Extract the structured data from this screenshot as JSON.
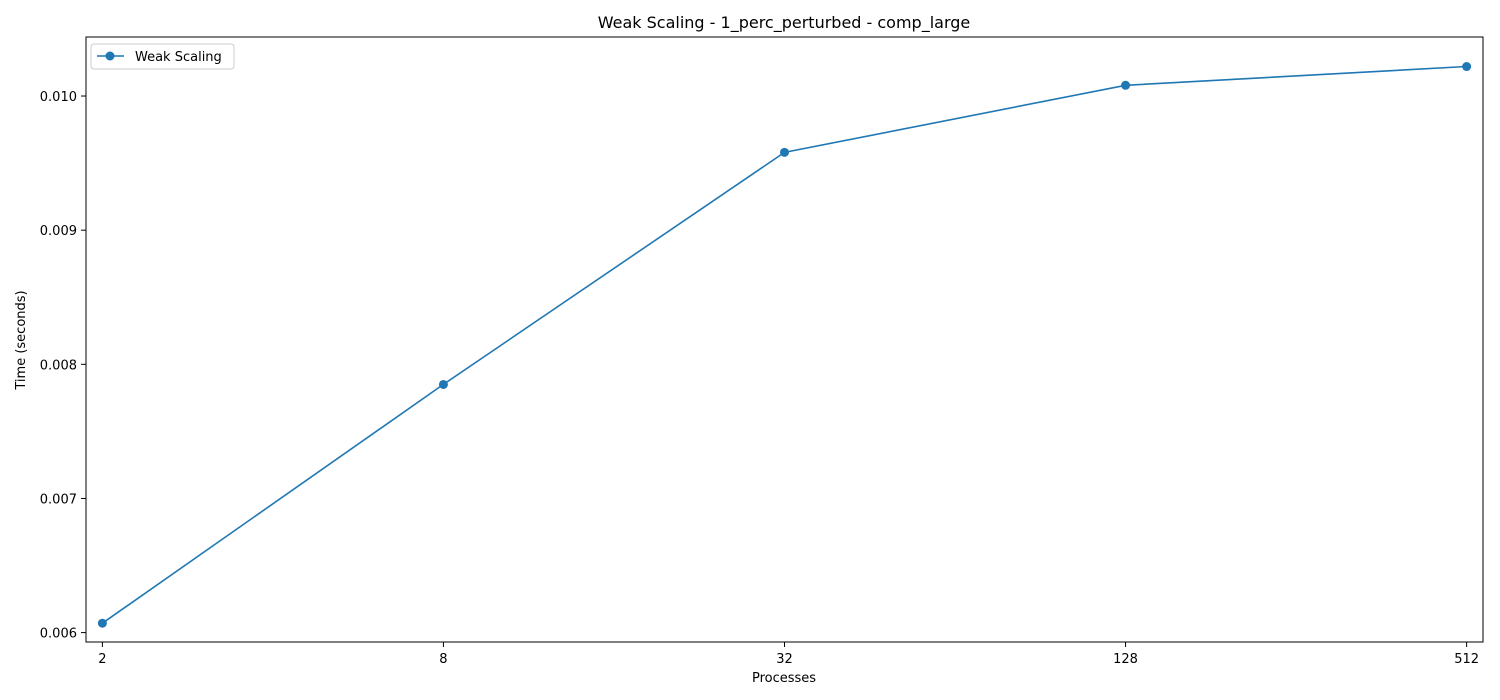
{
  "chart_data": {
    "type": "line",
    "title": "Weak Scaling - 1_perc_perturbed - comp_large",
    "xlabel": "Processes",
    "ylabel": "Time (seconds)",
    "x_scale": "log2",
    "categories": [
      "2",
      "8",
      "32",
      "128",
      "512"
    ],
    "x": [
      2,
      8,
      32,
      128,
      512
    ],
    "series": [
      {
        "name": "Weak Scaling",
        "color": "#1f77b4",
        "marker": "circle",
        "values": [
          0.00607,
          0.00785,
          0.00958,
          0.01008,
          0.01022
        ]
      }
    ],
    "y_ticks": [
      "0.006",
      "0.007",
      "0.008",
      "0.009",
      "0.010"
    ],
    "y_tick_values": [
      0.006,
      0.007,
      0.008,
      0.009,
      0.01
    ],
    "ylim": [
      0.00593,
      0.01044
    ],
    "grid": false,
    "legend_position": "upper-left"
  }
}
